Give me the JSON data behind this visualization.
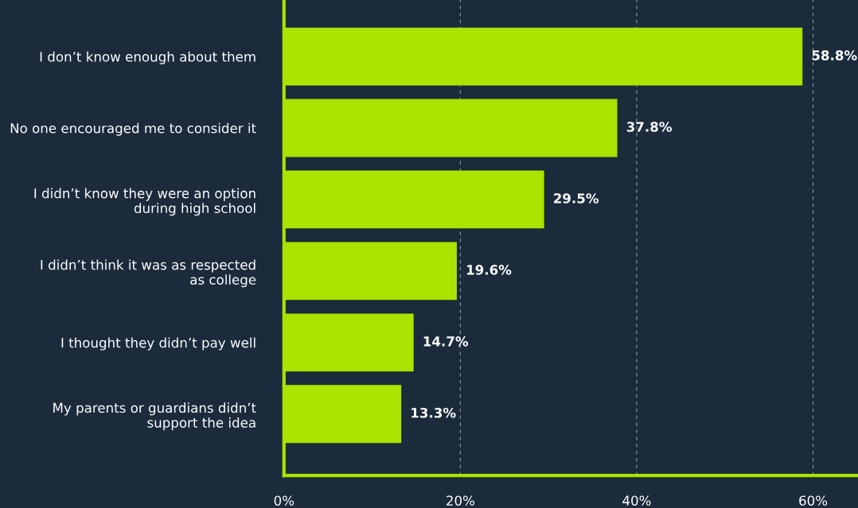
{
  "chart_data": {
    "type": "bar",
    "orientation": "horizontal",
    "categories": [
      "I don’t know enough about them",
      "No one encouraged me to consider it",
      "I didn’t know they were an option\nduring high school",
      "I didn’t think it was as respected\nas college",
      "I thought they didn’t pay well",
      "My parents or guardians didn’t\nsupport the idea"
    ],
    "values": [
      58.8,
      37.8,
      29.5,
      19.6,
      14.7,
      13.3
    ],
    "value_labels": [
      "58.8%",
      "37.8%",
      "29.5%",
      "19.6%",
      "14.7%",
      "13.3%"
    ],
    "color": "#abe200",
    "xlim": [
      0,
      65
    ],
    "xticks": [
      {
        "value": 0,
        "label": "0%"
      },
      {
        "value": 20,
        "label": "20%"
      },
      {
        "value": 40,
        "label": "40%"
      },
      {
        "value": 60,
        "label": "60%"
      }
    ],
    "grid": "x"
  }
}
